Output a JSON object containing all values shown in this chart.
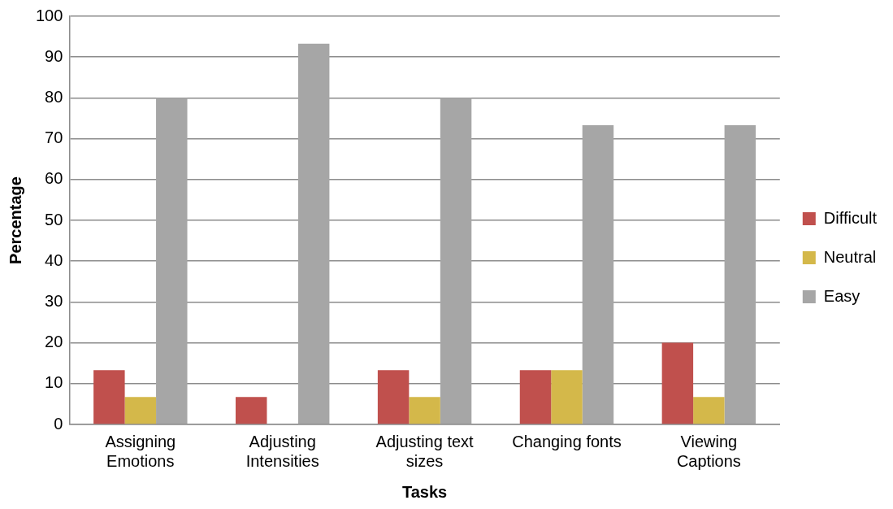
{
  "chart_data": {
    "type": "bar",
    "xlabel": "Tasks",
    "ylabel": "Percentage",
    "categories": [
      "Assigning Emotions",
      "Adjusting Intensities",
      "Adjusting text sizes",
      "Changing fonts",
      "Viewing Captions"
    ],
    "series": [
      {
        "name": "Difficult",
        "color": "#c0504d",
        "values": [
          13.3,
          6.7,
          13.3,
          13.3,
          20
        ]
      },
      {
        "name": "Neutral",
        "color": "#d4b84a",
        "values": [
          6.7,
          0,
          6.7,
          13.3,
          6.7
        ]
      },
      {
        "name": "Easy",
        "color": "#a6a6a6",
        "values": [
          80,
          93.3,
          80,
          73.3,
          73.3
        ]
      }
    ],
    "ylim": [
      0,
      100
    ],
    "yticks": [
      0,
      10,
      20,
      30,
      40,
      50,
      60,
      70,
      80,
      90,
      100
    ],
    "grid": "y",
    "legend": "right"
  }
}
